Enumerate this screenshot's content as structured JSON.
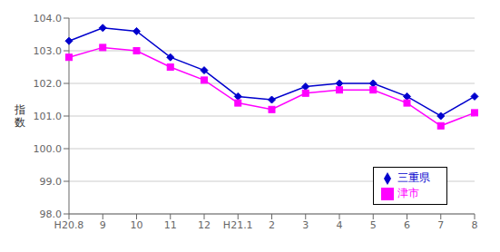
{
  "chart_data": {
    "type": "line",
    "y_label": "指\n数",
    "categories": [
      "H20.8",
      "9",
      "10",
      "11",
      "12",
      "H21.1",
      "2",
      "3",
      "4",
      "5",
      "6",
      "7",
      "8"
    ],
    "series": [
      {
        "name": "三重県",
        "color": "#0000cd",
        "marker": "diamond",
        "values": [
          103.3,
          103.7,
          103.6,
          102.8,
          102.4,
          101.6,
          101.5,
          101.9,
          102.0,
          102.0,
          101.6,
          101.0,
          101.6
        ]
      },
      {
        "name": "津市",
        "color": "#ff00ff",
        "marker": "square",
        "values": [
          102.8,
          103.1,
          103.0,
          102.5,
          102.1,
          101.4,
          101.2,
          101.7,
          101.8,
          101.8,
          101.4,
          100.7,
          101.1
        ]
      }
    ],
    "ylim": [
      98.0,
      104.0
    ],
    "yticks": [
      {
        "value": 98.0,
        "label": "98.0"
      },
      {
        "value": 99.0,
        "label": "99.0"
      },
      {
        "value": 100.0,
        "label": "100.0"
      },
      {
        "value": 101.0,
        "label": "101.0"
      },
      {
        "value": 102.0,
        "label": "102.0"
      },
      {
        "value": 103.0,
        "label": "103.0"
      },
      {
        "value": 104.0,
        "label": "104.0"
      }
    ],
    "grid": true,
    "legend": "lower right"
  }
}
